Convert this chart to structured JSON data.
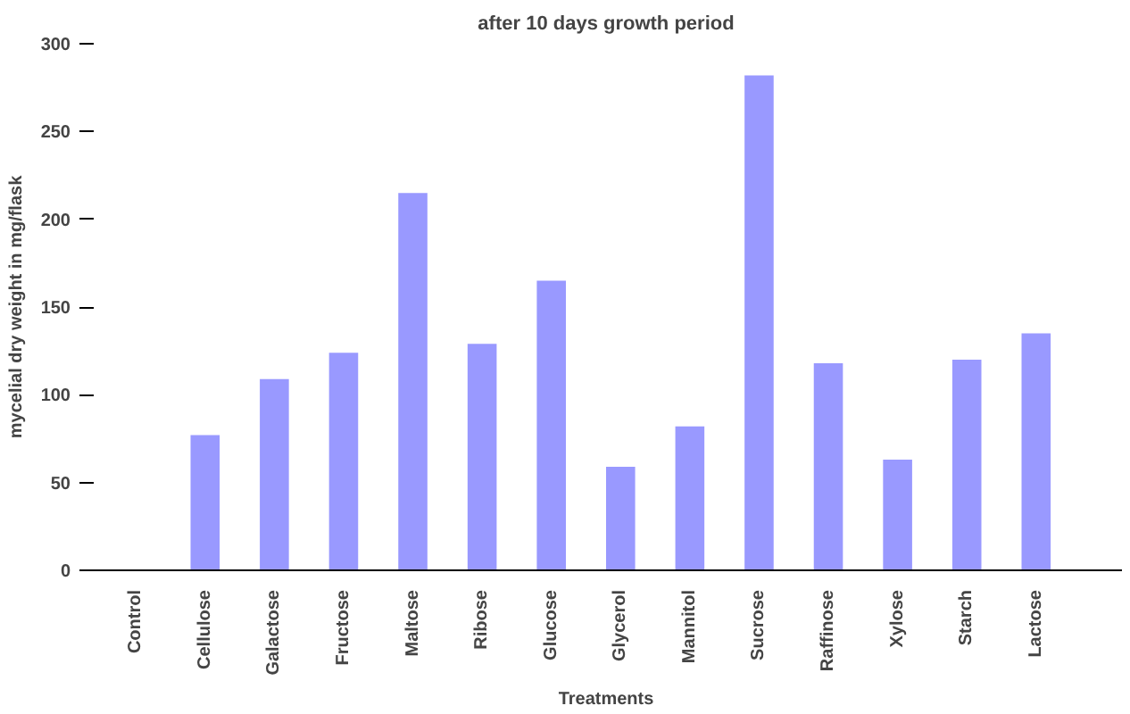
{
  "chart_data": {
    "type": "bar",
    "title": "after 10 days growth period",
    "xlabel": "Treatments",
    "ylabel": "mycelial dry weight in mg/flask",
    "categories": [
      "Control",
      "Cellulose",
      "Galactose",
      "Fructose",
      "Maltose",
      "Ribose",
      "Glucose",
      "Glycerol",
      "Mannitol",
      "Sucrose",
      "Raffinose",
      "Xylose",
      "Starch",
      "Lactose"
    ],
    "values": [
      0,
      77,
      109,
      124,
      215,
      129,
      165,
      59,
      82,
      282,
      118,
      63,
      120,
      135
    ],
    "color": "#9999ff",
    "ylim": [
      0,
      300
    ],
    "yticks": [
      0,
      50,
      100,
      150,
      200,
      250,
      300
    ],
    "grid": false
  }
}
